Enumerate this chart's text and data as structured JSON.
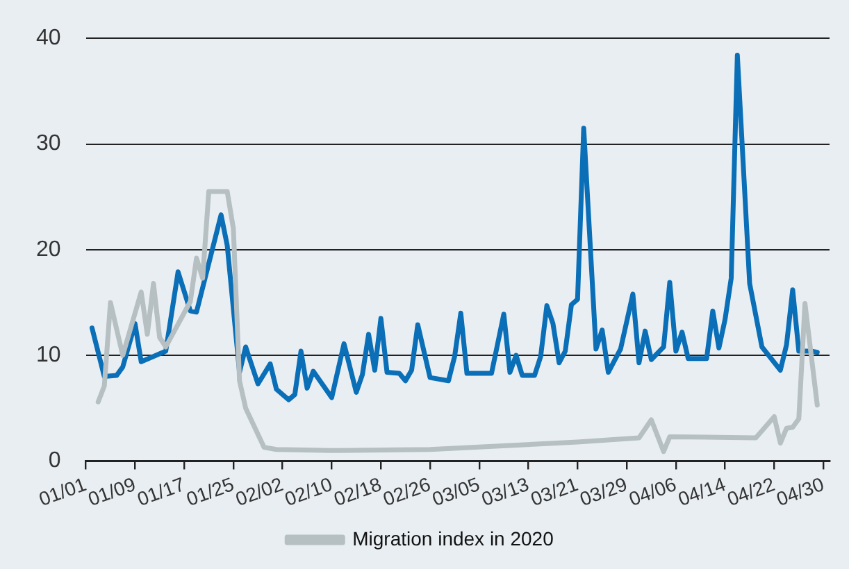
{
  "chart_data": {
    "type": "line",
    "series": [
      {
        "color": "#0a6fb7",
        "x": [
          "--01-02",
          "--01-04",
          "--01-06",
          "--01-07",
          "--01-09",
          "--01-10",
          "--01-14",
          "--01-16",
          "--01-18",
          "--01-19",
          "--01-23",
          "--01-24",
          "--01-26",
          "--01-27",
          "--01-29",
          "--01-31",
          "--02-01",
          "--02-03",
          "--02-04",
          "--02-05",
          "--02-06",
          "--02-07",
          "--02-10",
          "--02-12",
          "--02-14",
          "--02-15",
          "--02-16",
          "--02-17",
          "--02-18",
          "--02-19",
          "--02-21",
          "--02-22",
          "--02-23",
          "--02-24",
          "--02-26",
          "--02-29",
          "--03-01",
          "--03-02",
          "--03-03",
          "--03-07",
          "--03-09",
          "--03-10",
          "--03-11",
          "--03-12",
          "--03-14",
          "--03-15",
          "--03-16",
          "--03-17",
          "--03-18",
          "--03-19",
          "--03-20",
          "--03-21",
          "--03-22",
          "--03-24",
          "--03-25",
          "--03-26",
          "--03-28",
          "--03-30",
          "--03-31",
          "--04-01",
          "--04-02",
          "--04-04",
          "--04-05",
          "--04-06",
          "--04-07",
          "--04-08",
          "--04-11",
          "--04-12",
          "--04-13",
          "--04-14",
          "--04-15",
          "--04-16",
          "--04-18",
          "--04-20",
          "--04-23",
          "--04-24",
          "--04-25",
          "--04-26",
          "--04-28",
          "--04-29"
        ],
        "values": [
          12.6,
          8.0,
          8.1,
          8.9,
          13.0,
          9.4,
          10.4,
          17.9,
          14.2,
          14.1,
          23.3,
          20.4,
          8.4,
          10.8,
          7.3,
          9.2,
          6.8,
          5.8,
          6.3,
          10.4,
          6.9,
          8.5,
          6.0,
          11.1,
          6.5,
          8.2,
          12.0,
          8.6,
          13.5,
          8.4,
          8.3,
          7.6,
          8.6,
          12.9,
          7.9,
          7.6,
          9.9,
          14.0,
          8.3,
          8.3,
          13.9,
          8.4,
          10.0,
          8.1,
          8.1,
          9.9,
          14.7,
          13.0,
          9.3,
          10.4,
          14.8,
          15.3,
          31.5,
          10.6,
          12.4,
          8.4,
          10.6,
          15.8,
          9.3,
          12.3,
          9.6,
          10.8,
          16.9,
          10.4,
          12.2,
          9.7,
          9.7,
          14.2,
          10.7,
          13.4,
          17.3,
          38.4,
          16.8,
          10.8,
          8.6,
          11.0,
          16.2,
          10.4,
          10.4,
          10.3
        ]
      },
      {
        "name": "Migration index in 2020",
        "color": "#b6bfc1",
        "x": [
          "--01-03",
          "--01-04",
          "--01-05",
          "--01-07",
          "--01-10",
          "--01-11",
          "--01-12",
          "--01-13",
          "--01-14",
          "--01-18",
          "--01-19",
          "--01-20",
          "--01-21",
          "--01-24",
          "--01-25",
          "--01-26",
          "--01-27",
          "--01-30",
          "--02-01",
          "--02-10",
          "--02-26",
          "--03-21",
          "--03-31",
          "--04-02",
          "--04-04",
          "--04-05",
          "--04-19",
          "--04-22",
          "--04-23",
          "--04-24",
          "--04-25",
          "--04-26",
          "--04-27",
          "--04-29"
        ],
        "values": [
          5.6,
          7.1,
          15.0,
          10.0,
          16.0,
          12.0,
          16.8,
          11.7,
          10.8,
          15.1,
          19.2,
          17.3,
          25.5,
          25.5,
          22.0,
          7.6,
          5.0,
          1.3,
          1.1,
          1.0,
          1.1,
          1.8,
          2.2,
          3.9,
          0.9,
          2.3,
          2.2,
          4.2,
          1.7,
          3.1,
          3.2,
          4.0,
          14.9,
          5.3
        ]
      }
    ],
    "xlim": [
      "--01-01",
      "--05-01"
    ],
    "xticks": [
      {
        "value": "--01-01",
        "label": "01/01"
      },
      {
        "value": "--01-09",
        "label": "01/09"
      },
      {
        "value": "--01-17",
        "label": "01/17"
      },
      {
        "value": "--01-25",
        "label": "01/25"
      },
      {
        "value": "--02-02",
        "label": "02/02"
      },
      {
        "value": "--02-10",
        "label": "02/10"
      },
      {
        "value": "--02-18",
        "label": "02/18"
      },
      {
        "value": "--02-26",
        "label": "02/26"
      },
      {
        "value": "--03-05",
        "label": "03/05"
      },
      {
        "value": "--03-13",
        "label": "03/13"
      },
      {
        "value": "--03-21",
        "label": "03/21"
      },
      {
        "value": "--03-29",
        "label": "03/29"
      },
      {
        "value": "--04-06",
        "label": "04/06"
      },
      {
        "value": "--04-14",
        "label": "04/14"
      },
      {
        "value": "--04-22",
        "label": "04/22"
      },
      {
        "value": "--04-30",
        "label": "04/30"
      }
    ],
    "ylim": [
      0,
      40
    ],
    "yticks": [
      0,
      10,
      20,
      30,
      40
    ],
    "grid": "y",
    "legend": "bottom"
  }
}
